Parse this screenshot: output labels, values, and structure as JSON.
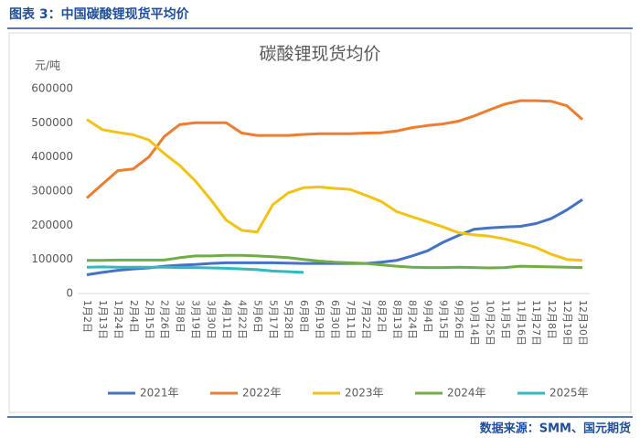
{
  "header": "图表 3：中国碳酸锂现货平均价",
  "source": "数据来源：SMM、国元期货",
  "chart_data": {
    "type": "line",
    "title": "碳酸锂现货均价",
    "y_label": "元/吨",
    "categories": [
      "1月2日",
      "1月13日",
      "1月24日",
      "2月4日",
      "2月15日",
      "2月26日",
      "3月8日",
      "3月19日",
      "3月30日",
      "4月11日",
      "4月22日",
      "5月6日",
      "5月17日",
      "5月28日",
      "6月8日",
      "6月19日",
      "6月30日",
      "7月11日",
      "7月22日",
      "8月2日",
      "8月13日",
      "8月24日",
      "9月4日",
      "9月15日",
      "9月26日",
      "10月14日",
      "10月25日",
      "11月5日",
      "11月16日",
      "11月27日",
      "12月8日",
      "12月19日",
      "12月30日"
    ],
    "series": [
      {
        "name": "2021年",
        "color": "#4472c4",
        "values": [
          55000,
          62000,
          68000,
          72000,
          75000,
          80000,
          83000,
          85000,
          88000,
          90000,
          90000,
          90000,
          90000,
          89000,
          88000,
          88000,
          88000,
          88000,
          88000,
          92000,
          97000,
          110000,
          125000,
          150000,
          170000,
          188000,
          192000,
          195000,
          197000,
          205000,
          220000,
          245000,
          275000
        ]
      },
      {
        "name": "2022年",
        "color": "#ed7d31",
        "values": [
          280000,
          320000,
          360000,
          365000,
          400000,
          460000,
          495000,
          500000,
          500000,
          500000,
          470000,
          463000,
          463000,
          463000,
          466000,
          468000,
          468000,
          468000,
          470000,
          471000,
          476000,
          486000,
          492000,
          497000,
          505000,
          520000,
          538000,
          555000,
          565000,
          565000,
          563000,
          550000,
          510000
        ]
      },
      {
        "name": "2023年",
        "color": "#f2c314",
        "values": [
          510000,
          480000,
          472000,
          465000,
          450000,
          410000,
          375000,
          330000,
          275000,
          215000,
          185000,
          180000,
          260000,
          295000,
          310000,
          312000,
          308000,
          305000,
          288000,
          270000,
          240000,
          225000,
          210000,
          195000,
          178000,
          172000,
          168000,
          160000,
          148000,
          135000,
          115000,
          100000,
          97000
        ]
      },
      {
        "name": "2024年",
        "color": "#70ad47",
        "values": [
          97000,
          97000,
          98000,
          98000,
          98000,
          98000,
          105000,
          110000,
          110000,
          112000,
          112000,
          110000,
          108000,
          105000,
          100000,
          95000,
          92000,
          90000,
          88000,
          84000,
          80000,
          77000,
          76000,
          76000,
          77000,
          76000,
          75000,
          76000,
          80000,
          79000,
          78000,
          77000,
          76000
        ]
      },
      {
        "name": "2025年",
        "color": "#2cbcbc",
        "values": [
          77000,
          78000,
          77000,
          77000,
          77000,
          77000,
          76000,
          76000,
          75000,
          74000,
          72000,
          70000,
          66000,
          64000,
          62000,
          null,
          null,
          null,
          null,
          null,
          null,
          null,
          null,
          null,
          null,
          null,
          null,
          null,
          null,
          null,
          null,
          null,
          null
        ]
      }
    ],
    "ylim": [
      0,
      600000
    ],
    "yticks": [
      0,
      100000,
      200000,
      300000,
      400000,
      500000,
      600000
    ],
    "grid": false
  }
}
